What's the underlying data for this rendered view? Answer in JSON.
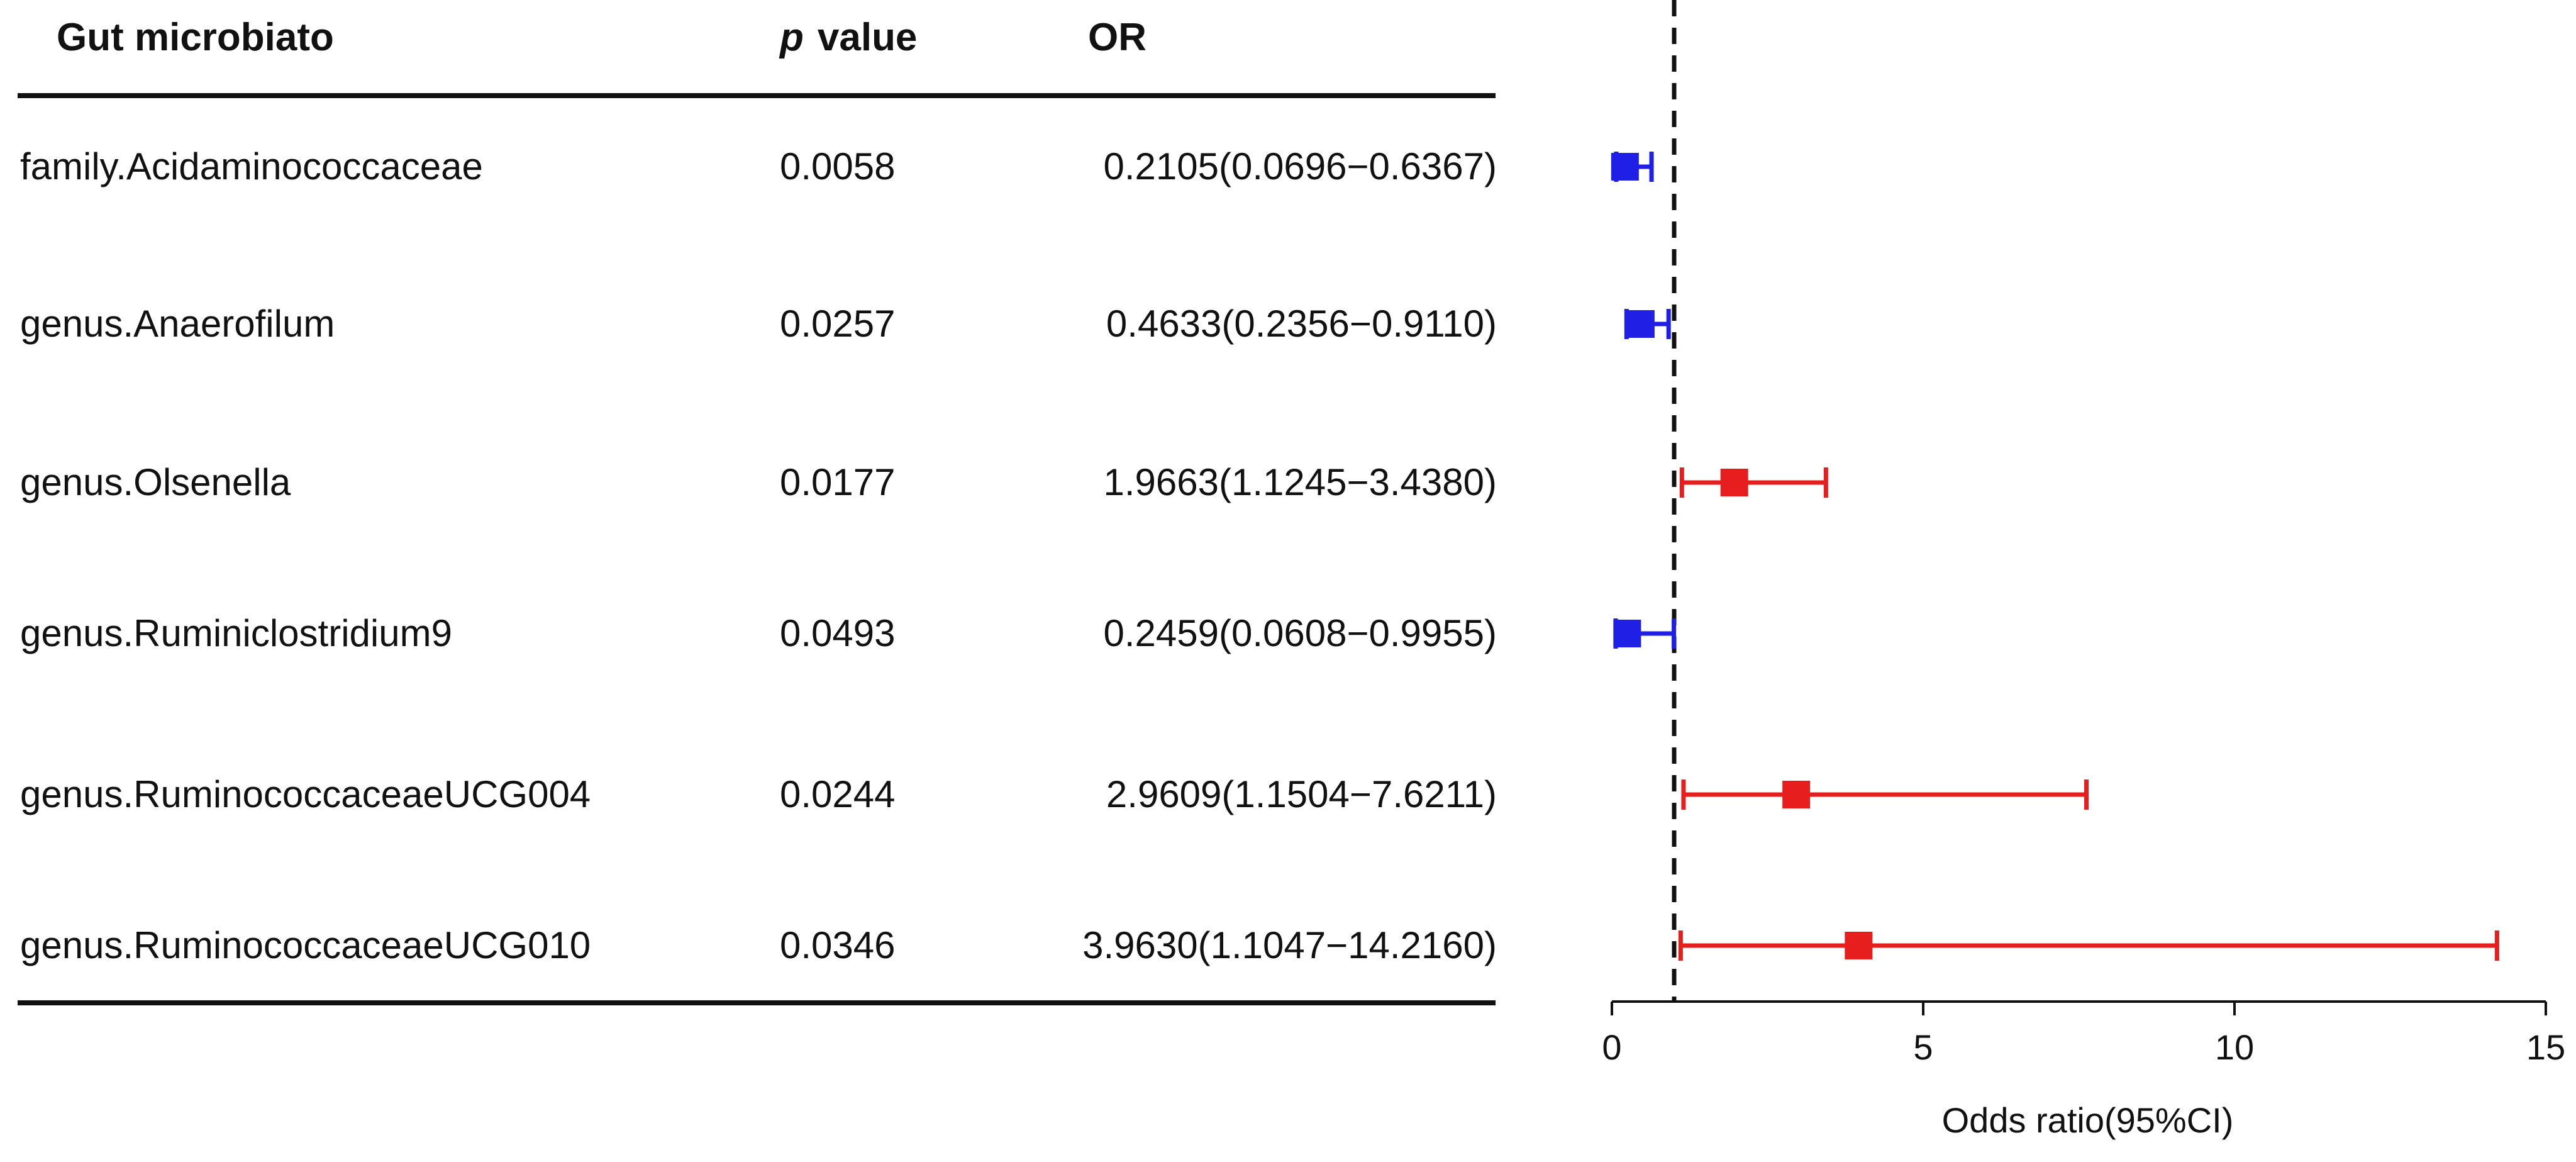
{
  "table": {
    "headers": {
      "gut": "Gut microbiato",
      "p_italic": "p",
      "p_rest": "value",
      "or": "OR"
    },
    "rows": [
      {
        "name": "family.Acidaminococcaceae",
        "p": "0.0058",
        "or": "0.2105(0.0696−0.6367)"
      },
      {
        "name": "genus.Anaerofilum",
        "p": "0.0257",
        "or": "0.4633(0.2356−0.9110)"
      },
      {
        "name": "genus.Olsenella",
        "p": "0.0177",
        "or": "1.9663(1.1245−3.4380)"
      },
      {
        "name": "genus.Ruminiclostridium9",
        "p": "0.0493",
        "or": "0.2459(0.0608−0.9955)"
      },
      {
        "name": "genus.RuminococcaceaeUCG004",
        "p": "0.0244",
        "or": "2.9609(1.1504−7.6211)"
      },
      {
        "name": "genus.RuminococcaceaeUCG010",
        "p": "0.0346",
        "or": "3.9630(1.1047−14.2160)"
      }
    ]
  },
  "chart_data": {
    "type": "scatter",
    "subtype": "forest-plot",
    "xlabel": "Odds ratio(95%CI)",
    "xlim": [
      0,
      15
    ],
    "xticks": [
      0,
      5,
      10,
      15
    ],
    "reference_line": 1,
    "reference_line_style": "dashed",
    "grid": false,
    "colors": {
      "protective": "#1f1fe6",
      "risk": "#e61e1e",
      "reference": "#111111"
    },
    "points": [
      {
        "label": "family.Acidaminococcaceae",
        "or": 0.2105,
        "lower": 0.0696,
        "upper": 0.6367,
        "color": "#1f1fe6"
      },
      {
        "label": "genus.Anaerofilum",
        "or": 0.4633,
        "lower": 0.2356,
        "upper": 0.911,
        "color": "#1f1fe6"
      },
      {
        "label": "genus.Olsenella",
        "or": 1.9663,
        "lower": 1.1245,
        "upper": 3.438,
        "color": "#e61e1e"
      },
      {
        "label": "genus.Ruminiclostridium9",
        "or": 0.2459,
        "lower": 0.0608,
        "upper": 0.9955,
        "color": "#1f1fe6"
      },
      {
        "label": "genus.RuminococcaceaeUCG004",
        "or": 2.9609,
        "lower": 1.1504,
        "upper": 7.6211,
        "color": "#e61e1e"
      },
      {
        "label": "genus.RuminococcaceaeUCG010",
        "or": 3.963,
        "lower": 1.1047,
        "upper": 14.216,
        "color": "#e61e1e"
      }
    ]
  }
}
